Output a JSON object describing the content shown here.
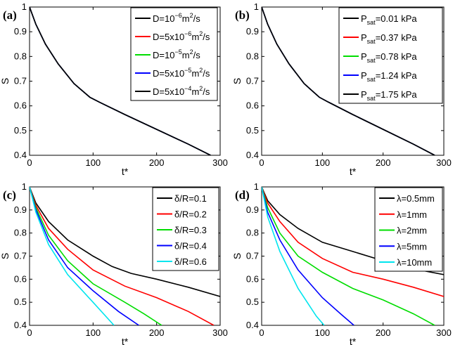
{
  "chart_data": [
    {
      "type": "line",
      "panel_label": "(a)",
      "xlabel": "t*",
      "ylabel": "S",
      "xlim": [
        0,
        300
      ],
      "ylim": [
        0.4,
        1.0
      ],
      "xticks": [
        "0",
        "100",
        "200",
        "300"
      ],
      "yticks": [
        "0.4",
        "0.5",
        "0.6",
        "0.7",
        "0.8",
        "0.9",
        "1"
      ],
      "legend_position": "top-right",
      "series": [
        {
          "name": "D=10^-6 m^2/s",
          "legend": {
            "base": "D=10",
            "exp": "−6",
            "unit": "m",
            "unit_exp": "2",
            "tail": "/s"
          },
          "color": "#000000",
          "x": [
            0,
            10,
            25,
            45,
            70,
            95,
            110,
            150,
            200,
            250,
            285
          ],
          "y": [
            1.0,
            0.93,
            0.85,
            0.77,
            0.69,
            0.635,
            0.615,
            0.565,
            0.505,
            0.445,
            0.4
          ]
        },
        {
          "name": "D=5x10^-6 m^2/s",
          "legend": {
            "base": "D=5x10",
            "exp": "−6",
            "unit": "m",
            "unit_exp": "2",
            "tail": "/s"
          },
          "color": "#ff0000",
          "x": [
            0,
            10,
            25,
            45,
            70,
            95,
            110,
            150,
            200,
            250,
            285
          ],
          "y": [
            1.0,
            0.93,
            0.85,
            0.77,
            0.69,
            0.635,
            0.615,
            0.565,
            0.505,
            0.445,
            0.4
          ]
        },
        {
          "name": "D=10^-5 m^2/s",
          "legend": {
            "base": "D=10",
            "exp": "−5",
            "unit": "m",
            "unit_exp": "2",
            "tail": "/s"
          },
          "color": "#00dd00",
          "x": [
            0,
            10,
            25,
            45,
            70,
            95,
            110,
            150,
            200,
            250,
            285
          ],
          "y": [
            1.0,
            0.93,
            0.85,
            0.77,
            0.69,
            0.635,
            0.615,
            0.565,
            0.505,
            0.445,
            0.4
          ]
        },
        {
          "name": "D=5x10^-5 m^2/s",
          "legend": {
            "base": "D=5x10",
            "exp": "−5",
            "unit": "m",
            "unit_exp": "2",
            "tail": "/s"
          },
          "color": "#0000ff",
          "x": [
            0,
            10,
            25,
            45,
            70,
            95,
            110,
            150,
            200,
            250,
            285
          ],
          "y": [
            1.0,
            0.93,
            0.85,
            0.77,
            0.69,
            0.635,
            0.615,
            0.565,
            0.505,
            0.445,
            0.4
          ]
        },
        {
          "name": "D=5x10^-4 m^2/s",
          "legend": {
            "base": "D=5x10",
            "exp": "−4",
            "unit": "m",
            "unit_exp": "2",
            "tail": "/s"
          },
          "color": "#000000",
          "x": [
            0,
            10,
            25,
            45,
            70,
            95,
            110,
            150,
            200,
            250,
            285
          ],
          "y": [
            1.0,
            0.93,
            0.85,
            0.77,
            0.69,
            0.635,
            0.615,
            0.565,
            0.505,
            0.445,
            0.4
          ]
        }
      ]
    },
    {
      "type": "line",
      "panel_label": "(b)",
      "xlabel": "t*",
      "ylabel": "S",
      "xlim": [
        0,
        300
      ],
      "ylim": [
        0.4,
        1.0
      ],
      "xticks": [
        "0",
        "100",
        "200",
        "300"
      ],
      "yticks": [
        "0.4",
        "0.5",
        "0.6",
        "0.7",
        "0.8",
        "0.9",
        "1"
      ],
      "legend_position": "top-right",
      "series": [
        {
          "name": "P_sat=0.01 kPa",
          "legend": {
            "base": "P",
            "sub": "sat",
            "tail": "=0.01 kPa"
          },
          "color": "#000000",
          "x": [
            0,
            10,
            25,
            45,
            70,
            95,
            110,
            150,
            200,
            250,
            285
          ],
          "y": [
            1.0,
            0.93,
            0.85,
            0.77,
            0.69,
            0.635,
            0.615,
            0.565,
            0.505,
            0.445,
            0.4
          ]
        },
        {
          "name": "P_sat=0.37 kPa",
          "legend": {
            "base": "P",
            "sub": "sat",
            "tail": "=0.37 kPa"
          },
          "color": "#ff0000",
          "x": [
            0,
            10,
            25,
            45,
            70,
            95,
            110,
            150,
            200,
            250,
            285
          ],
          "y": [
            1.0,
            0.93,
            0.85,
            0.77,
            0.69,
            0.635,
            0.615,
            0.565,
            0.505,
            0.445,
            0.4
          ]
        },
        {
          "name": "P_sat=0.78 kPa",
          "legend": {
            "base": "P",
            "sub": "sat",
            "tail": "=0.78 kPa"
          },
          "color": "#00dd00",
          "x": [
            0,
            10,
            25,
            45,
            70,
            95,
            110,
            150,
            200,
            250,
            285
          ],
          "y": [
            1.0,
            0.93,
            0.85,
            0.77,
            0.69,
            0.635,
            0.615,
            0.565,
            0.505,
            0.445,
            0.4
          ]
        },
        {
          "name": "P_sat=1.24 kPa",
          "legend": {
            "base": "P",
            "sub": "sat",
            "tail": "=1.24 kPa"
          },
          "color": "#0000ff",
          "x": [
            0,
            10,
            25,
            45,
            70,
            95,
            110,
            150,
            200,
            250,
            285
          ],
          "y": [
            1.0,
            0.93,
            0.85,
            0.77,
            0.69,
            0.635,
            0.615,
            0.565,
            0.505,
            0.445,
            0.4
          ]
        },
        {
          "name": "P_sat=1.75 kPa",
          "legend": {
            "base": "P",
            "sub": "sat",
            "tail": "=1.75 kPa"
          },
          "color": "#000000",
          "x": [
            0,
            10,
            25,
            45,
            70,
            95,
            110,
            150,
            200,
            250,
            285
          ],
          "y": [
            1.0,
            0.93,
            0.85,
            0.77,
            0.69,
            0.635,
            0.615,
            0.565,
            0.505,
            0.445,
            0.4
          ]
        }
      ]
    },
    {
      "type": "line",
      "panel_label": "(c)",
      "xlabel": "t*",
      "ylabel": "S",
      "xlim": [
        0,
        300
      ],
      "ylim": [
        0.4,
        1.0
      ],
      "xticks": [
        "0",
        "100",
        "200",
        "300"
      ],
      "yticks": [
        "0.4",
        "0.5",
        "0.6",
        "0.7",
        "0.8",
        "0.9",
        "1"
      ],
      "legend_position": "top-right",
      "series": [
        {
          "name": "δ/R=0.1",
          "legend": {
            "base": "δ/R=0.1"
          },
          "color": "#000000",
          "x": [
            0,
            10,
            30,
            60,
            100,
            130,
            160,
            200,
            250,
            300
          ],
          "y": [
            1.0,
            0.93,
            0.85,
            0.77,
            0.7,
            0.655,
            0.625,
            0.6,
            0.565,
            0.525
          ]
        },
        {
          "name": "δ/R=0.2",
          "legend": {
            "base": "δ/R=0.2"
          },
          "color": "#ff0000",
          "x": [
            0,
            10,
            30,
            60,
            100,
            150,
            200,
            250,
            290
          ],
          "y": [
            1.0,
            0.92,
            0.82,
            0.73,
            0.64,
            0.57,
            0.52,
            0.46,
            0.4
          ]
        },
        {
          "name": "δ/R=0.3",
          "legend": {
            "base": "δ/R=0.3"
          },
          "color": "#00dd00",
          "x": [
            0,
            10,
            30,
            60,
            100,
            150,
            180,
            208
          ],
          "y": [
            1.0,
            0.91,
            0.79,
            0.68,
            0.58,
            0.5,
            0.45,
            0.4
          ]
        },
        {
          "name": "δ/R=0.4",
          "legend": {
            "base": "δ/R=0.4"
          },
          "color": "#0000ff",
          "x": [
            0,
            10,
            30,
            60,
            100,
            140,
            172
          ],
          "y": [
            1.0,
            0.9,
            0.77,
            0.65,
            0.55,
            0.46,
            0.4
          ]
        },
        {
          "name": "δ/R=0.6",
          "legend": {
            "base": "δ/R=0.6"
          },
          "color": "#00e5ee",
          "x": [
            0,
            10,
            30,
            60,
            100,
            133
          ],
          "y": [
            1.0,
            0.89,
            0.75,
            0.62,
            0.5,
            0.4
          ]
        }
      ]
    },
    {
      "type": "line",
      "panel_label": "(d)",
      "xlabel": "t*",
      "ylabel": "S",
      "xlim": [
        0,
        300
      ],
      "ylim": [
        0.4,
        1.0
      ],
      "xticks": [
        "0",
        "100",
        "200",
        "300"
      ],
      "yticks": [
        "0.4",
        "0.5",
        "0.6",
        "0.7",
        "0.8",
        "0.9",
        "1"
      ],
      "legend_position": "top-right",
      "series": [
        {
          "name": "λ=0.5mm",
          "legend": {
            "base": "λ=0.5mm"
          },
          "color": "#000000",
          "x": [
            0,
            10,
            30,
            60,
            100,
            150,
            200,
            250,
            300
          ],
          "y": [
            1.0,
            0.94,
            0.88,
            0.82,
            0.76,
            0.72,
            0.68,
            0.645,
            0.62
          ]
        },
        {
          "name": "λ=1mm",
          "legend": {
            "base": "λ=1mm"
          },
          "color": "#ff0000",
          "x": [
            0,
            10,
            30,
            60,
            100,
            150,
            200,
            250,
            300
          ],
          "y": [
            1.0,
            0.93,
            0.85,
            0.76,
            0.69,
            0.63,
            0.6,
            0.565,
            0.525
          ]
        },
        {
          "name": "λ=2mm",
          "legend": {
            "base": "λ=2mm"
          },
          "color": "#00dd00",
          "x": [
            0,
            10,
            30,
            60,
            100,
            150,
            200,
            250,
            285
          ],
          "y": [
            1.0,
            0.91,
            0.8,
            0.7,
            0.63,
            0.56,
            0.51,
            0.45,
            0.4
          ]
        },
        {
          "name": "λ=5mm",
          "legend": {
            "base": "λ=5mm"
          },
          "color": "#0000ff",
          "x": [
            0,
            10,
            30,
            60,
            100,
            130,
            152
          ],
          "y": [
            1.0,
            0.89,
            0.77,
            0.64,
            0.52,
            0.45,
            0.4
          ]
        },
        {
          "name": "λ=10mm",
          "legend": {
            "base": "λ=10mm"
          },
          "color": "#00e5ee",
          "x": [
            0,
            10,
            30,
            60,
            90,
            103
          ],
          "y": [
            1.0,
            0.87,
            0.72,
            0.56,
            0.44,
            0.4
          ]
        }
      ]
    }
  ]
}
